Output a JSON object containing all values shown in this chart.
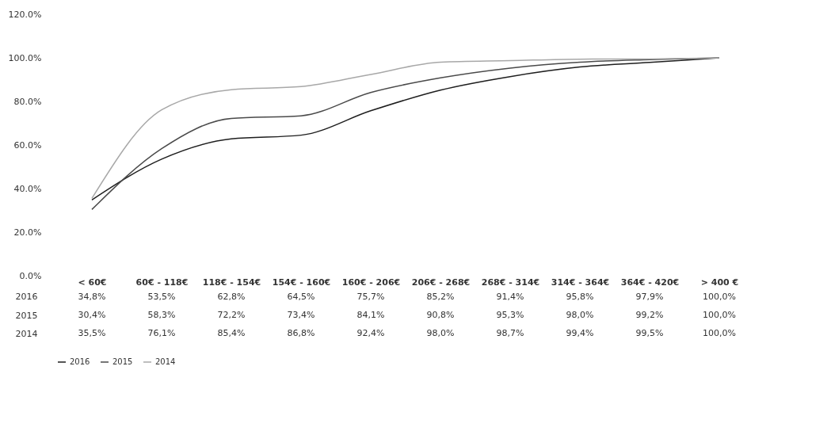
{
  "chart_data": {
    "type": "line",
    "categories": [
      "< 60€",
      "60€ - 118€",
      "118€ - 154€",
      "154€ - 160€",
      "160€ - 206€",
      "206€ - 268€",
      "268€ - 314€",
      "314€ - 364€",
      "364€ - 420€",
      "> 400 €"
    ],
    "series": [
      {
        "name": "2016",
        "color": "#1e1e1e",
        "values": [
          34.8,
          53.5,
          62.8,
          64.5,
          75.7,
          85.2,
          91.4,
          95.8,
          97.9,
          100.0
        ],
        "value_labels": [
          "34,8%",
          "53,5%",
          "62,8%",
          "64,5%",
          "75,7%",
          "85,2%",
          "91,4%",
          "95,8%",
          "97,9%",
          "100,0%"
        ]
      },
      {
        "name": "2015",
        "color": "#4a4a4a",
        "values": [
          30.4,
          58.3,
          72.2,
          73.4,
          84.1,
          90.8,
          95.3,
          98.0,
          99.2,
          100.0
        ],
        "value_labels": [
          "30,4%",
          "58,3%",
          "72,2%",
          "73,4%",
          "84,1%",
          "90,8%",
          "95,3%",
          "98,0%",
          "99,2%",
          "100,0%"
        ]
      },
      {
        "name": "2014",
        "color": "#a8a8a8",
        "values": [
          35.5,
          76.1,
          85.4,
          86.8,
          92.4,
          98.0,
          98.7,
          99.4,
          99.5,
          100.0
        ],
        "value_labels": [
          "35,5%",
          "76,1%",
          "85,4%",
          "86,8%",
          "92,4%",
          "98,0%",
          "98,7%",
          "99,4%",
          "99,5%",
          "100,0%"
        ]
      }
    ],
    "ylim": [
      0,
      120
    ],
    "yticks": [
      {
        "value": 0,
        "label": "0.0%"
      },
      {
        "value": 20,
        "label": "20.0%"
      },
      {
        "value": 40,
        "label": "40.0%"
      },
      {
        "value": 60,
        "label": "60.0%"
      },
      {
        "value": 80,
        "label": "80.0%"
      },
      {
        "value": 100,
        "label": "100.0%"
      },
      {
        "value": 120,
        "label": "120.0%"
      }
    ],
    "grid": false,
    "legend": "bottom",
    "marker": "none",
    "line_style": "solid"
  }
}
